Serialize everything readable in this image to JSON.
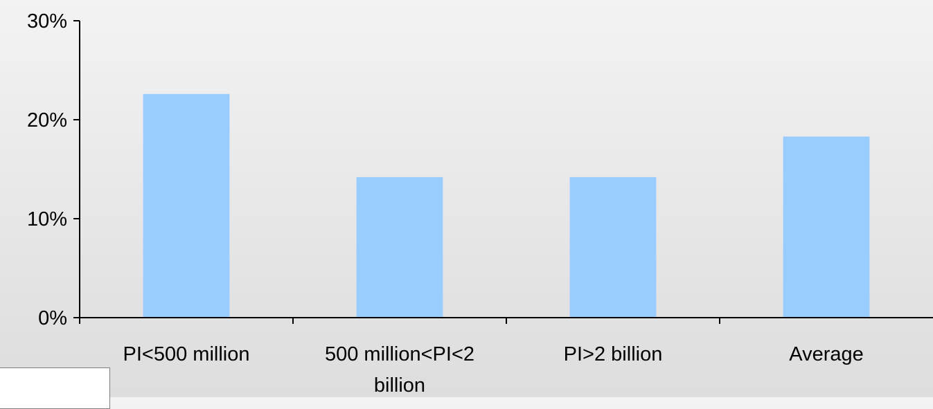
{
  "chart_data": {
    "type": "bar",
    "title": "",
    "xlabel": "",
    "ylabel": "",
    "categories": [
      "PI<500 million",
      "500 million<PI<2 billion",
      "PI>2 billion",
      "Average"
    ],
    "category_label_lines": [
      [
        "PI<500 million"
      ],
      [
        "500 million<PI<2",
        "billion"
      ],
      [
        "PI>2 billion"
      ],
      [
        "Average"
      ]
    ],
    "series": [
      {
        "values": [
          22.6,
          14.2,
          14.2,
          18.3
        ]
      }
    ],
    "ylim": [
      0,
      30
    ],
    "yticks": [
      0,
      10,
      20,
      30
    ],
    "ytick_labels": [
      "0%",
      "10%",
      "20%",
      "30%"
    ],
    "grid": false,
    "legend": "none",
    "colors": {
      "bar": "#99ccff",
      "axis": "#000000",
      "text": "#000000"
    }
  }
}
